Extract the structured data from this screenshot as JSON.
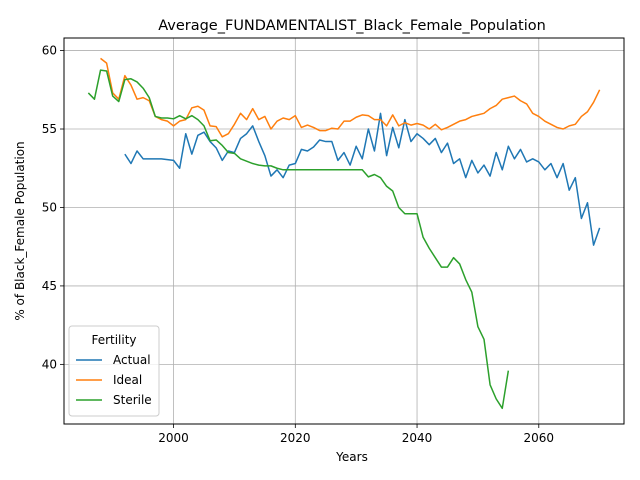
{
  "chart_data": {
    "type": "line",
    "title": "Average_FUNDAMENTALIST_Black_Female_Population",
    "xlabel": "Years",
    "ylabel": "% of Black_Female Population",
    "xlim": [
      1982,
      2074
    ],
    "ylim": [
      36.2,
      60.8
    ],
    "xticks": [
      2000,
      2020,
      2040,
      2060
    ],
    "yticks": [
      40,
      45,
      50,
      55,
      60
    ],
    "grid": true,
    "legend": {
      "title": "Fertility",
      "placement": "lower-left"
    },
    "series": [
      {
        "name": "Actual",
        "color": "#1f77b4",
        "points": [
          [
            1992,
            53.4
          ],
          [
            1993,
            52.8
          ],
          [
            1994,
            53.6
          ],
          [
            1995,
            53.1
          ],
          [
            1996,
            53.1
          ],
          [
            1997,
            53.1
          ],
          [
            1998,
            53.1
          ],
          [
            1999,
            53.05
          ],
          [
            2000,
            53.0
          ],
          [
            2001,
            52.5
          ],
          [
            2002,
            54.7
          ],
          [
            2003,
            53.4
          ],
          [
            2004,
            54.6
          ],
          [
            2005,
            54.8
          ],
          [
            2006,
            54.2
          ],
          [
            2007,
            53.8
          ],
          [
            2008,
            53.0
          ],
          [
            2009,
            53.6
          ],
          [
            2010,
            53.5
          ],
          [
            2011,
            54.4
          ],
          [
            2012,
            54.7
          ],
          [
            2013,
            55.2
          ],
          [
            2014,
            54.2
          ],
          [
            2015,
            53.3
          ],
          [
            2016,
            52.0
          ],
          [
            2017,
            52.4
          ],
          [
            2018,
            51.9
          ],
          [
            2019,
            52.7
          ],
          [
            2020,
            52.8
          ],
          [
            2021,
            53.7
          ],
          [
            2022,
            53.6
          ],
          [
            2023,
            53.85
          ],
          [
            2024,
            54.3
          ],
          [
            2025,
            54.2
          ],
          [
            2026,
            54.2
          ],
          [
            2027,
            53.0
          ],
          [
            2028,
            53.5
          ],
          [
            2029,
            52.7
          ],
          [
            2030,
            53.9
          ],
          [
            2031,
            53.1
          ],
          [
            2032,
            55.0
          ],
          [
            2033,
            53.6
          ],
          [
            2034,
            56.0
          ],
          [
            2035,
            53.3
          ],
          [
            2036,
            55.1
          ],
          [
            2037,
            53.8
          ],
          [
            2038,
            55.6
          ],
          [
            2039,
            54.2
          ],
          [
            2040,
            54.7
          ],
          [
            2041,
            54.4
          ],
          [
            2042,
            54.0
          ],
          [
            2043,
            54.4
          ],
          [
            2044,
            53.5
          ],
          [
            2045,
            54.1
          ],
          [
            2046,
            52.8
          ],
          [
            2047,
            53.1
          ],
          [
            2048,
            51.9
          ],
          [
            2049,
            53.0
          ],
          [
            2050,
            52.2
          ],
          [
            2051,
            52.7
          ],
          [
            2052,
            52.0
          ],
          [
            2053,
            53.5
          ],
          [
            2054,
            52.4
          ],
          [
            2055,
            53.9
          ],
          [
            2056,
            53.1
          ],
          [
            2057,
            53.7
          ],
          [
            2058,
            52.9
          ],
          [
            2059,
            53.1
          ],
          [
            2060,
            52.9
          ],
          [
            2061,
            52.4
          ],
          [
            2062,
            52.8
          ],
          [
            2063,
            51.9
          ],
          [
            2064,
            52.8
          ],
          [
            2065,
            51.1
          ],
          [
            2066,
            51.9
          ],
          [
            2067,
            49.3
          ],
          [
            2068,
            50.3
          ],
          [
            2069,
            47.6
          ],
          [
            2070,
            48.7
          ]
        ]
      },
      {
        "name": "Ideal",
        "color": "#ff7f0e",
        "points": [
          [
            1988,
            59.5
          ],
          [
            1989,
            59.2
          ],
          [
            1990,
            57.3
          ],
          [
            1991,
            56.9
          ],
          [
            1992,
            58.4
          ],
          [
            1993,
            57.8
          ],
          [
            1994,
            56.9
          ],
          [
            1995,
            57.0
          ],
          [
            1996,
            56.8
          ],
          [
            1997,
            55.8
          ],
          [
            1998,
            55.6
          ],
          [
            1999,
            55.5
          ],
          [
            2000,
            55.2
          ],
          [
            2001,
            55.5
          ],
          [
            2002,
            55.6
          ],
          [
            2003,
            56.35
          ],
          [
            2004,
            56.45
          ],
          [
            2005,
            56.2
          ],
          [
            2006,
            55.2
          ],
          [
            2007,
            55.15
          ],
          [
            2008,
            54.5
          ],
          [
            2009,
            54.7
          ],
          [
            2010,
            55.3
          ],
          [
            2011,
            56.0
          ],
          [
            2012,
            55.6
          ],
          [
            2013,
            56.3
          ],
          [
            2014,
            55.6
          ],
          [
            2015,
            55.8
          ],
          [
            2016,
            55.0
          ],
          [
            2017,
            55.5
          ],
          [
            2018,
            55.7
          ],
          [
            2019,
            55.6
          ],
          [
            2020,
            55.85
          ],
          [
            2021,
            55.1
          ],
          [
            2022,
            55.25
          ],
          [
            2023,
            55.1
          ],
          [
            2024,
            54.9
          ],
          [
            2025,
            54.9
          ],
          [
            2026,
            55.05
          ],
          [
            2027,
            55.0
          ],
          [
            2028,
            55.5
          ],
          [
            2029,
            55.5
          ],
          [
            2030,
            55.75
          ],
          [
            2031,
            55.9
          ],
          [
            2032,
            55.85
          ],
          [
            2033,
            55.6
          ],
          [
            2034,
            55.6
          ],
          [
            2035,
            55.2
          ],
          [
            2036,
            55.9
          ],
          [
            2037,
            55.2
          ],
          [
            2038,
            55.4
          ],
          [
            2039,
            55.25
          ],
          [
            2040,
            55.35
          ],
          [
            2041,
            55.25
          ],
          [
            2042,
            55.0
          ],
          [
            2043,
            55.3
          ],
          [
            2044,
            54.95
          ],
          [
            2045,
            55.1
          ],
          [
            2046,
            55.3
          ],
          [
            2047,
            55.5
          ],
          [
            2048,
            55.6
          ],
          [
            2049,
            55.8
          ],
          [
            2050,
            55.9
          ],
          [
            2051,
            56.0
          ],
          [
            2052,
            56.3
          ],
          [
            2053,
            56.5
          ],
          [
            2054,
            56.9
          ],
          [
            2055,
            57.0
          ],
          [
            2056,
            57.1
          ],
          [
            2057,
            56.8
          ],
          [
            2058,
            56.6
          ],
          [
            2059,
            56.0
          ],
          [
            2060,
            55.8
          ],
          [
            2061,
            55.5
          ],
          [
            2062,
            55.3
          ],
          [
            2063,
            55.1
          ],
          [
            2064,
            55.0
          ],
          [
            2065,
            55.2
          ],
          [
            2066,
            55.3
          ],
          [
            2067,
            55.8
          ],
          [
            2068,
            56.1
          ],
          [
            2069,
            56.7
          ],
          [
            2070,
            57.5
          ]
        ]
      },
      {
        "name": "Sterile",
        "color": "#2ca02c",
        "points": [
          [
            1986,
            57.3
          ],
          [
            1987,
            56.9
          ],
          [
            1988,
            58.75
          ],
          [
            1989,
            58.7
          ],
          [
            1990,
            57.1
          ],
          [
            1991,
            56.75
          ],
          [
            1992,
            58.15
          ],
          [
            1993,
            58.2
          ],
          [
            1994,
            58.0
          ],
          [
            1995,
            57.6
          ],
          [
            1996,
            57.0
          ],
          [
            1997,
            55.8
          ],
          [
            1998,
            55.7
          ],
          [
            1999,
            55.7
          ],
          [
            2000,
            55.65
          ],
          [
            2001,
            55.85
          ],
          [
            2002,
            55.65
          ],
          [
            2003,
            55.85
          ],
          [
            2004,
            55.6
          ],
          [
            2005,
            55.2
          ],
          [
            2006,
            54.25
          ],
          [
            2007,
            54.3
          ],
          [
            2008,
            53.95
          ],
          [
            2009,
            53.5
          ],
          [
            2010,
            53.45
          ],
          [
            2011,
            53.1
          ],
          [
            2012,
            52.95
          ],
          [
            2013,
            52.8
          ],
          [
            2014,
            52.7
          ],
          [
            2015,
            52.65
          ],
          [
            2016,
            52.65
          ],
          [
            2017,
            52.5
          ],
          [
            2018,
            52.4
          ],
          [
            2019,
            52.4
          ],
          [
            2020,
            52.4
          ],
          [
            2021,
            52.4
          ],
          [
            2022,
            52.4
          ],
          [
            2023,
            52.4
          ],
          [
            2024,
            52.4
          ],
          [
            2025,
            52.4
          ],
          [
            2026,
            52.4
          ],
          [
            2027,
            52.4
          ],
          [
            2028,
            52.4
          ],
          [
            2029,
            52.4
          ],
          [
            2030,
            52.4
          ],
          [
            2031,
            52.4
          ],
          [
            2032,
            51.95
          ],
          [
            2033,
            52.1
          ],
          [
            2034,
            51.9
          ],
          [
            2035,
            51.35
          ],
          [
            2036,
            51.05
          ],
          [
            2037,
            50.0
          ],
          [
            2038,
            49.6
          ],
          [
            2039,
            49.6
          ],
          [
            2040,
            49.6
          ],
          [
            2041,
            48.1
          ],
          [
            2042,
            47.4
          ],
          [
            2043,
            46.8
          ],
          [
            2044,
            46.2
          ],
          [
            2045,
            46.2
          ],
          [
            2046,
            46.8
          ],
          [
            2047,
            46.4
          ],
          [
            2048,
            45.4
          ],
          [
            2049,
            44.6
          ],
          [
            2050,
            42.4
          ],
          [
            2051,
            41.6
          ],
          [
            2052,
            38.7
          ],
          [
            2053,
            37.8
          ],
          [
            2054,
            37.2
          ],
          [
            2055,
            39.6
          ]
        ]
      }
    ]
  }
}
